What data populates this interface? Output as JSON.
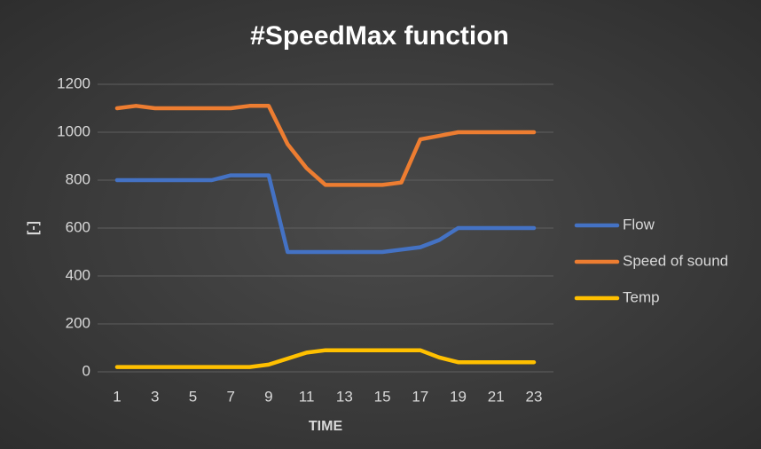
{
  "chart_data": {
    "type": "line",
    "title": "#SpeedMax function",
    "x_label": "TIME",
    "y_label": "[-]",
    "categories": [
      "1",
      null,
      "3",
      null,
      "5",
      null,
      "7",
      null,
      "9",
      null,
      "11",
      null,
      "13",
      null,
      "15",
      null,
      "17",
      null,
      "19",
      null,
      "21",
      null,
      "23"
    ],
    "series": [
      {
        "name": "Flow",
        "color": "#4472c4",
        "values": [
          800,
          800,
          800,
          800,
          800,
          800,
          820,
          820,
          820,
          500,
          500,
          500,
          500,
          500,
          500,
          510,
          520,
          550,
          600,
          600,
          600,
          600,
          600
        ]
      },
      {
        "name": "Speed of sound",
        "color": "#ed7d31",
        "values": [
          1100,
          1110,
          1100,
          1100,
          1100,
          1100,
          1100,
          1110,
          1110,
          950,
          850,
          780,
          780,
          780,
          780,
          790,
          970,
          985,
          1000,
          1000,
          1000,
          1000,
          1000
        ]
      },
      {
        "name": "Temp",
        "color": "#ffc000",
        "values": [
          20,
          20,
          20,
          20,
          20,
          20,
          20,
          20,
          30,
          55,
          80,
          90,
          90,
          90,
          90,
          90,
          90,
          60,
          40,
          40,
          40,
          40,
          40
        ]
      }
    ],
    "ylim": [
      0,
      1200
    ],
    "yticks": [
      0,
      200,
      400,
      600,
      800,
      1000,
      1200
    ],
    "grid": true,
    "legend": "right"
  }
}
